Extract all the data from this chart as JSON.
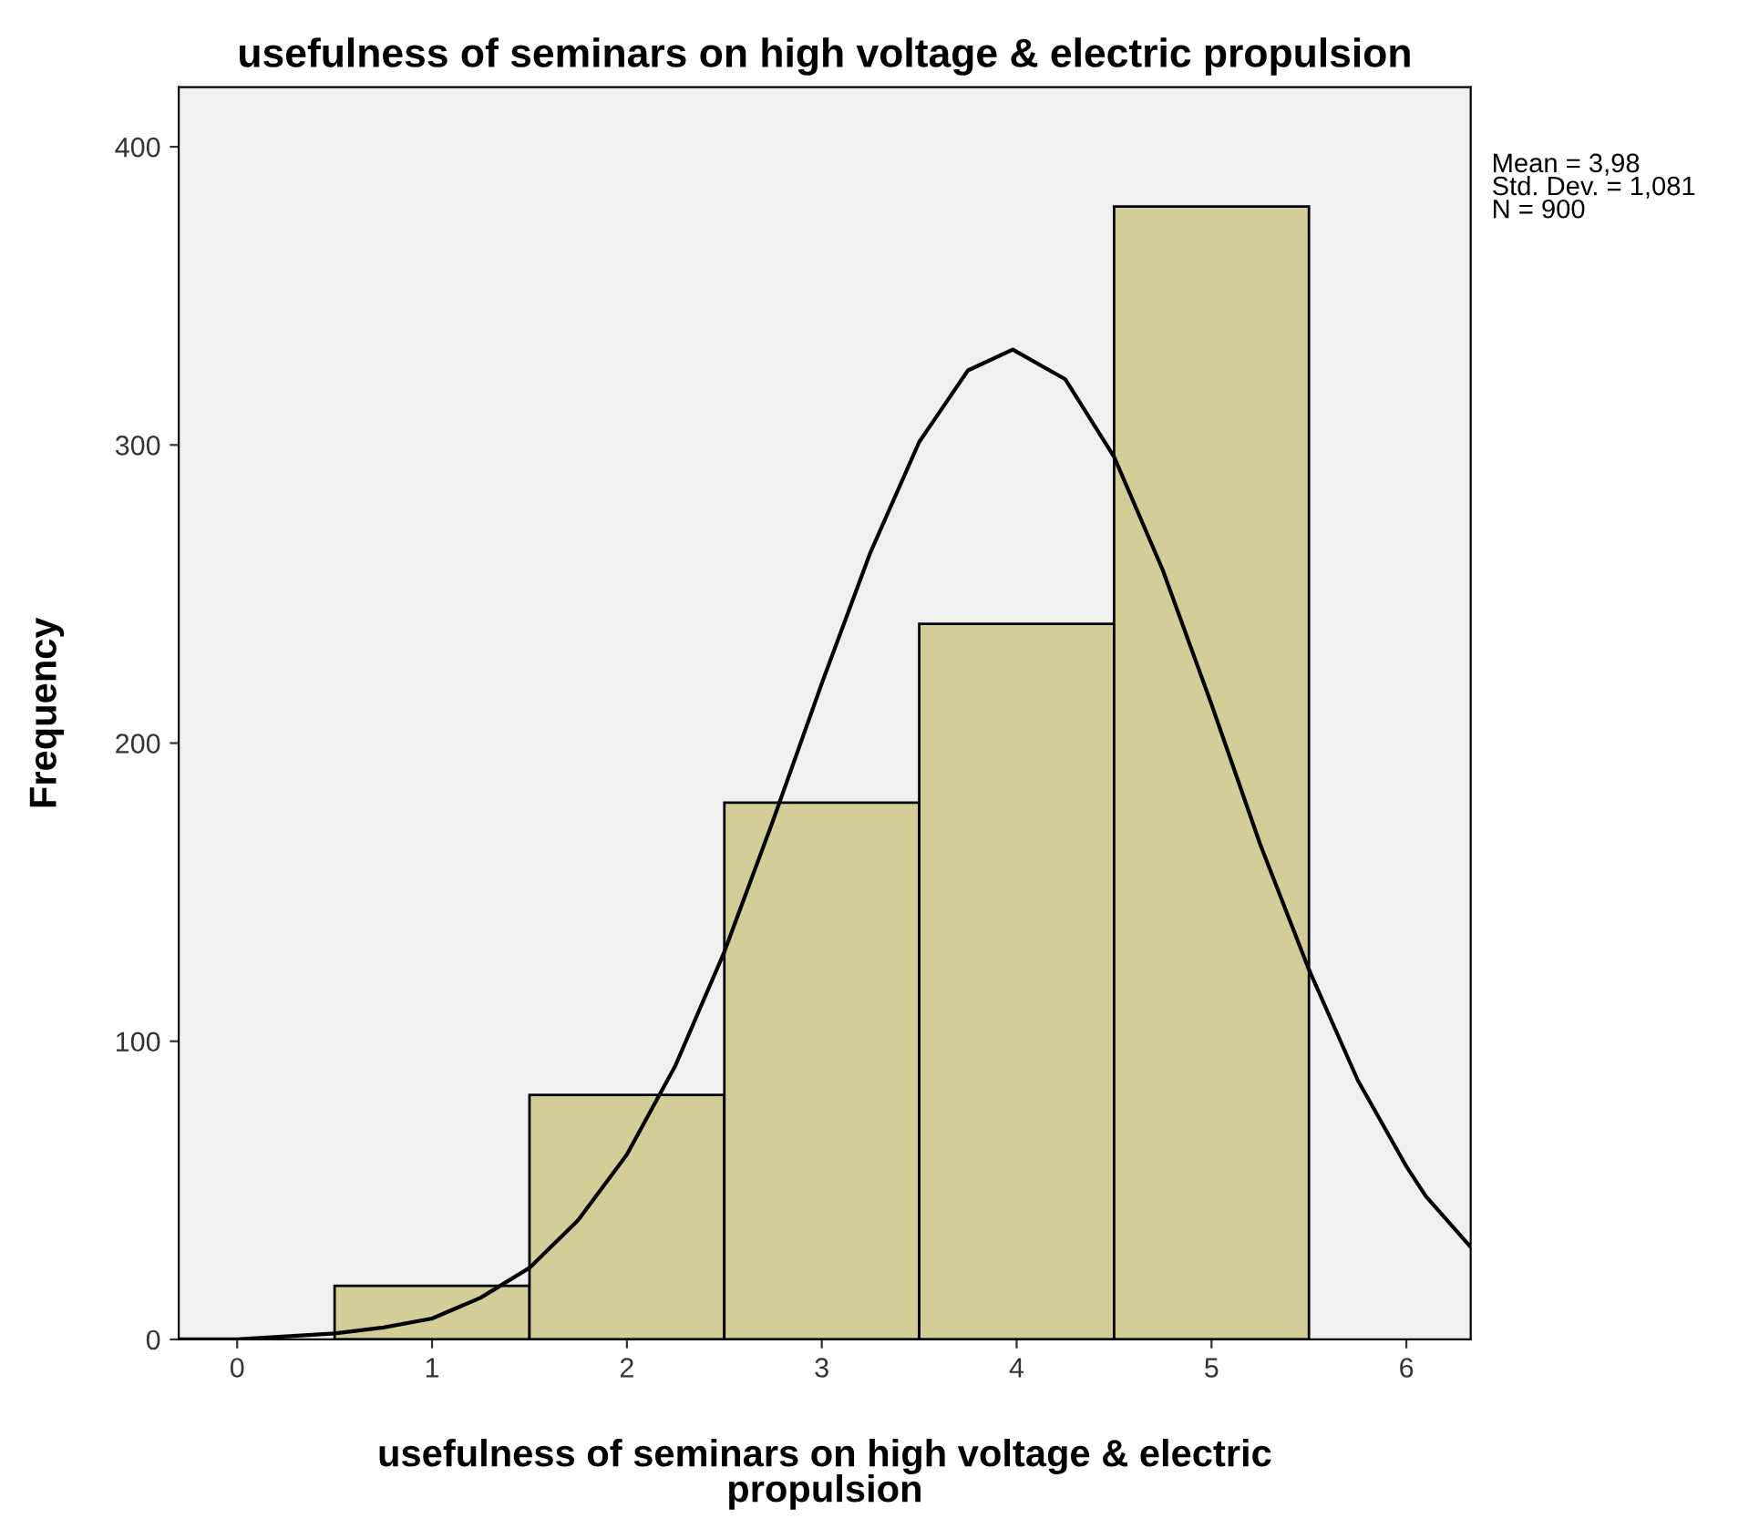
{
  "chart_data": {
    "type": "histogram",
    "title": "usefulness of seminars on high voltage & electric propulsion",
    "xlabel": "usefulness of seminars on high voltage & electric\npropulsion",
    "ylabel": "Frequency",
    "series": [
      {
        "color": "#d3ce97",
        "bins": [
          0.5,
          1.5,
          2.5,
          3.5,
          4.5,
          5.5
        ],
        "values": [
          18,
          82,
          180,
          240,
          380
        ]
      },
      {
        "type": "line",
        "color": "#000000",
        "x": [
          -0.3,
          0,
          0.5,
          0.75,
          1,
          1.25,
          1.5,
          1.75,
          2,
          2.25,
          2.5,
          2.75,
          3,
          3.25,
          3.5,
          3.75,
          3.98,
          4.25,
          4.5,
          4.75,
          5,
          5.25,
          5.5,
          5.75,
          6,
          6.1,
          6.33
        ],
        "values": [
          0,
          0,
          2,
          4,
          7,
          14,
          24,
          40,
          62,
          92,
          130,
          174,
          220,
          264,
          301,
          325,
          332,
          322,
          296,
          258,
          213,
          166,
          124,
          87,
          58,
          48,
          31
        ]
      }
    ],
    "xlim": [
      -0.3,
      6.33
    ],
    "ylim": [
      0,
      420
    ],
    "xticks": [
      0,
      1,
      2,
      3,
      4,
      5,
      6
    ],
    "yticks": [
      0,
      100,
      200,
      300,
      400
    ],
    "grid": false,
    "annotations": [
      "Mean = 3,98",
      "Std. Dev. = 1,081",
      "N = 900"
    ]
  }
}
